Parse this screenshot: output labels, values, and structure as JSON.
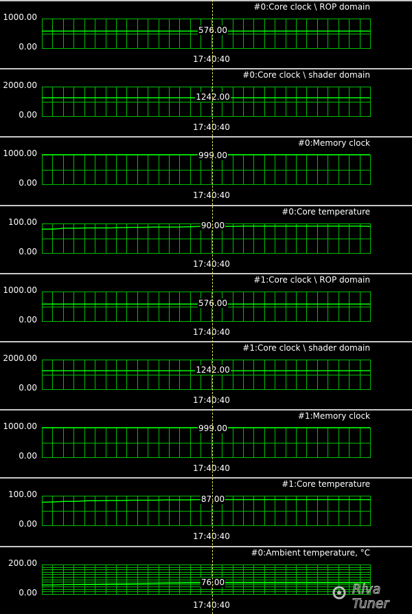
{
  "time_label": "17:40:40",
  "colors": {
    "grid": "#00c000",
    "line": "#00ff00",
    "cursor": "#e8e85a",
    "border": "#c8c8c8"
  },
  "panels": [
    {
      "title": "#0:Core clock \\ ROP domain",
      "y_top_label": "1000.00",
      "y_bottom_label": "0.00",
      "ymax": 1000,
      "value_label": "576.00",
      "series": [
        576,
        576,
        576,
        576,
        576,
        576,
        576,
        576,
        576,
        576,
        576,
        576,
        576,
        576,
        576,
        576,
        576,
        576,
        576,
        576,
        576,
        576,
        576,
        576,
        576,
        576,
        576,
        576,
        576,
        576
      ]
    },
    {
      "title": "#0:Core clock \\ shader domain",
      "y_top_label": "2000.00",
      "y_bottom_label": "0.00",
      "ymax": 2000,
      "value_label": "1242.00",
      "series": [
        1242,
        1242,
        1242,
        1242,
        1242,
        1242,
        1242,
        1242,
        1242,
        1242,
        1242,
        1242,
        1242,
        1242,
        1242,
        1242,
        1242,
        1242,
        1242,
        1242,
        1242,
        1242,
        1242,
        1242,
        1242,
        1242,
        1242,
        1242,
        1242,
        1242
      ]
    },
    {
      "title": "#0:Memory clock",
      "y_top_label": "1000.00",
      "y_bottom_label": "0.00",
      "ymax": 1000,
      "value_label": "999.00",
      "series": [
        999,
        999,
        999,
        999,
        999,
        999,
        999,
        999,
        999,
        999,
        999,
        999,
        999,
        999,
        999,
        999,
        999,
        999,
        999,
        999,
        999,
        999,
        999,
        999,
        999,
        999,
        999,
        999,
        999,
        999
      ]
    },
    {
      "title": "#0:Core temperature",
      "y_top_label": "100.00",
      "y_bottom_label": "0.00",
      "ymax": 100,
      "value_label": "90.00",
      "series": [
        81,
        81,
        84,
        84,
        85,
        85,
        85,
        86,
        87,
        87,
        88,
        88,
        88,
        89,
        90,
        90,
        90,
        90,
        91,
        91,
        91,
        91,
        91,
        91,
        91,
        91,
        91,
        91,
        91,
        90
      ]
    },
    {
      "title": "#1:Core clock \\ ROP domain",
      "y_top_label": "1000.00",
      "y_bottom_label": "0.00",
      "ymax": 1000,
      "value_label": "576.00",
      "series": [
        576,
        576,
        576,
        576,
        576,
        576,
        576,
        576,
        576,
        576,
        576,
        576,
        576,
        576,
        576,
        576,
        576,
        576,
        576,
        576,
        576,
        576,
        576,
        576,
        576,
        576,
        576,
        576,
        576,
        576
      ]
    },
    {
      "title": "#1:Core clock \\ shader domain",
      "y_top_label": "2000.00",
      "y_bottom_label": "0.00",
      "ymax": 2000,
      "value_label": "1242.00",
      "series": [
        1242,
        1242,
        1242,
        1242,
        1242,
        1242,
        1242,
        1242,
        1242,
        1242,
        1242,
        1242,
        1242,
        1242,
        1242,
        1242,
        1242,
        1242,
        1242,
        1242,
        1242,
        1242,
        1242,
        1242,
        1242,
        1242,
        1242,
        1242,
        1242,
        1242
      ]
    },
    {
      "title": "#1:Memory clock",
      "y_top_label": "1000.00",
      "y_bottom_label": "0.00",
      "ymax": 1000,
      "value_label": "999.00",
      "series": [
        999,
        999,
        999,
        999,
        999,
        999,
        999,
        999,
        999,
        999,
        999,
        999,
        999,
        999,
        999,
        999,
        999,
        999,
        999,
        999,
        999,
        999,
        999,
        999,
        999,
        999,
        999,
        999,
        999,
        999
      ]
    },
    {
      "title": "#1:Core temperature",
      "y_top_label": "100.00",
      "y_bottom_label": "0.00",
      "ymax": 100,
      "value_label": "87.00",
      "series": [
        78,
        79,
        81,
        81,
        83,
        83,
        84,
        84,
        85,
        85,
        85,
        86,
        86,
        86,
        87,
        87,
        87,
        87,
        87,
        87,
        87,
        87,
        87,
        87,
        87,
        87,
        87,
        87,
        87,
        87
      ]
    },
    {
      "title": "#0:Ambient temperature, °C",
      "y_top_label": "200.00",
      "y_bottom_label": "0.00",
      "ymax": 200,
      "value_label": "76.00",
      "series": [
        62,
        62,
        64,
        65,
        66,
        67,
        68,
        69,
        70,
        71,
        72,
        73,
        74,
        75,
        75,
        76,
        76,
        76,
        76,
        76,
        76,
        76,
        76,
        76,
        76,
        76,
        76,
        76,
        76,
        76
      ],
      "dense": true
    }
  ],
  "logo": {
    "line1": "Riva",
    "line2": "Tuner"
  }
}
